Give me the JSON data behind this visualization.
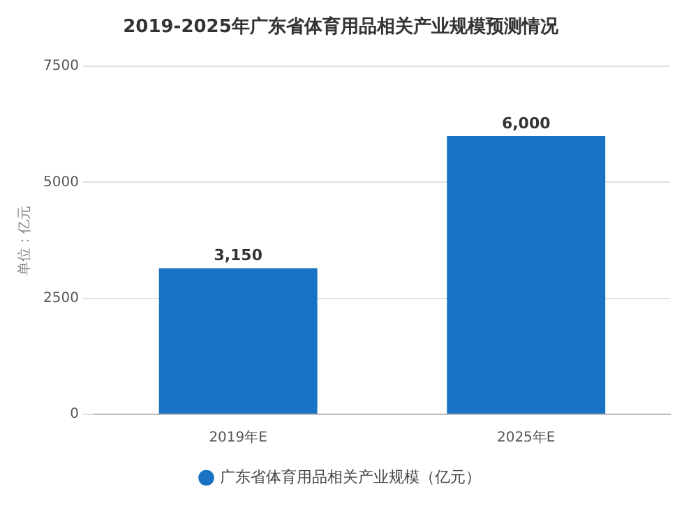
{
  "chart_data": {
    "type": "bar",
    "title": "2019-2025年广东省体育用品相关产业规模预测情况",
    "ylabel": "单位：亿元",
    "categories": [
      "2019年E",
      "2025年E"
    ],
    "series": [
      {
        "name": "广东省体育用品相关产业规模（亿元）",
        "color": "#1a72c4",
        "values": [
          3150,
          6000
        ],
        "value_labels": [
          "3,150",
          "6,000"
        ]
      }
    ],
    "ylim": [
      0,
      7500
    ],
    "yticks": [
      0,
      2500,
      5000,
      7500
    ],
    "grid": "y",
    "legend": "bottom"
  }
}
